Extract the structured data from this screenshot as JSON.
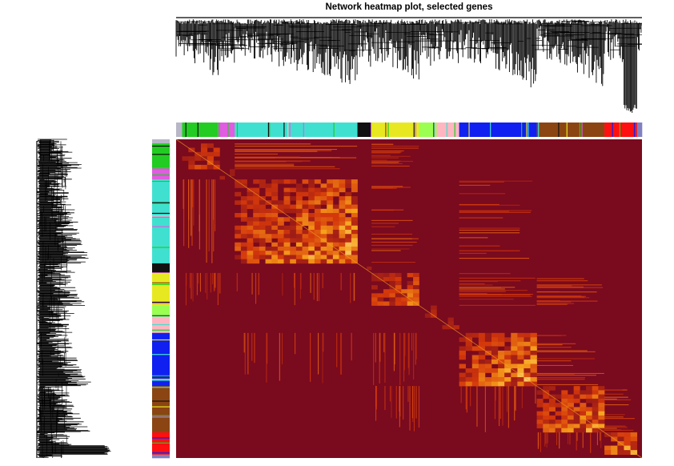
{
  "chart_data": {
    "type": "heatmap",
    "title": "Network heatmap plot, selected genes",
    "xlabel": "",
    "ylabel": "",
    "grid": false,
    "legend": "none",
    "matrix_kind": "TOM topological overlap (symmetric, genes ordered by hierarchical clustering dendrogram)",
    "colors": {
      "background": "#7a0a1e",
      "mid": "#d4380b",
      "high": "#f7a21b",
      "max": "#fff4c8"
    },
    "modules": [
      {
        "color": "#b7b7c7",
        "fraction": 0.012,
        "strength": 0.15
      },
      {
        "color": "#22cc22",
        "fraction": 0.075,
        "strength": 0.55
      },
      {
        "color": "#e05ce0",
        "fraction": 0.03,
        "strength": 0.35
      },
      {
        "color": "#40e0d0",
        "fraction": 0.245,
        "strength": 0.8
      },
      {
        "color": "#111111",
        "fraction": 0.028,
        "strength": 0.25
      },
      {
        "color": "#e8e820",
        "fraction": 0.095,
        "strength": 0.65
      },
      {
        "color": "#9aff50",
        "fraction": 0.035,
        "strength": 0.3
      },
      {
        "color": "#ffb6c1",
        "fraction": 0.045,
        "strength": 0.3
      },
      {
        "color": "#1020f0",
        "fraction": 0.155,
        "strength": 0.85
      },
      {
        "color": "#8b4513",
        "fraction": 0.135,
        "strength": 0.75
      },
      {
        "color": "#ff1010",
        "fraction": 0.065,
        "strength": 0.95
      },
      {
        "color": "#8080c0",
        "fraction": 0.01,
        "strength": 0.1
      }
    ]
  }
}
